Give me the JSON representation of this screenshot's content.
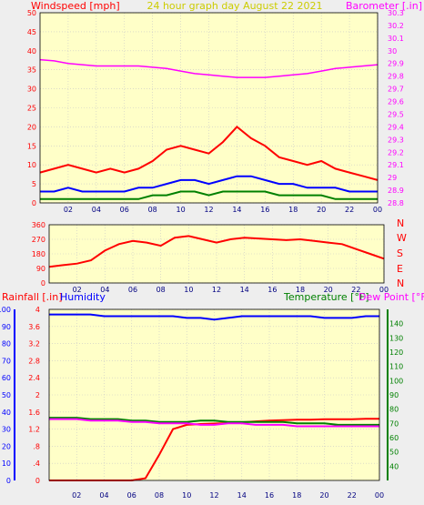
{
  "header": {
    "left_label": "Windspeed [mph]",
    "center_label": "24 hour graph day   August 22 2021",
    "right_label": "Barometer [.in]"
  },
  "compass": [
    "N",
    "W",
    "S",
    "E",
    "N"
  ],
  "bottom_labels": {
    "rainfall": "Rainfall [.in]",
    "humidity": "Humidity",
    "temperature": "Temperature [°F]",
    "dewpoint": "Dew Point [°F]"
  },
  "colors": {
    "plot_bg": "#ffffc8",
    "frame_bg": "#eeeeee",
    "grid": "#c8c8c8",
    "windspeed_gust": "#ff0000",
    "windspeed_avg": "#0000ff",
    "windspeed_low": "#008000",
    "barometer": "#ff00ff",
    "winddir": "#ff0000",
    "rainfall": "#ff0000",
    "humidity": "#0000ff",
    "temperature": "#008000",
    "dewpoint": "#ff00ff"
  },
  "x_axis": {
    "ticks": [
      "02",
      "04",
      "06",
      "08",
      "10",
      "12",
      "14",
      "16",
      "18",
      "20",
      "22",
      "00"
    ]
  },
  "chart_data": [
    {
      "type": "line",
      "title": "24 hour graph day   August 22 2021",
      "ylabel": "Windspeed [mph]",
      "y2label": "Barometer [.in]",
      "ylim": [
        0,
        50
      ],
      "y2lim": [
        28.8,
        30.3
      ],
      "yticks": [
        "0",
        "5",
        "10",
        "15",
        "20",
        "25",
        "30",
        "35",
        "40",
        "45",
        "50"
      ],
      "y2ticks": [
        "28.8",
        "28.9",
        "29",
        "29.1",
        "29.2",
        "29.3",
        "29.4",
        "29.5",
        "29.6",
        "29.7",
        "29.8",
        "29.9",
        "30",
        "30.1",
        "30.2",
        "30.3"
      ],
      "x_hours": [
        0,
        1,
        2,
        3,
        4,
        5,
        6,
        7,
        8,
        9,
        10,
        11,
        12,
        13,
        14,
        15,
        16,
        17,
        18,
        19,
        20,
        21,
        22,
        23,
        24
      ],
      "series": [
        {
          "name": "Gust",
          "axis": "left",
          "values": [
            8,
            9,
            10,
            9,
            8,
            9,
            8,
            9,
            11,
            14,
            15,
            14,
            13,
            16,
            20,
            17,
            15,
            12,
            11,
            10,
            11,
            9,
            8,
            7,
            6
          ]
        },
        {
          "name": "Average",
          "axis": "left",
          "values": [
            3,
            3,
            4,
            3,
            3,
            3,
            3,
            4,
            4,
            5,
            6,
            6,
            5,
            6,
            7,
            7,
            6,
            5,
            5,
            4,
            4,
            4,
            3,
            3,
            3
          ]
        },
        {
          "name": "Low",
          "axis": "left",
          "values": [
            1,
            1,
            1,
            1,
            1,
            1,
            1,
            1,
            2,
            2,
            3,
            3,
            2,
            3,
            3,
            3,
            3,
            2,
            2,
            2,
            2,
            1,
            1,
            1,
            1
          ]
        },
        {
          "name": "Barometer",
          "axis": "right",
          "values": [
            29.93,
            29.92,
            29.9,
            29.89,
            29.88,
            29.88,
            29.88,
            29.88,
            29.87,
            29.86,
            29.84,
            29.82,
            29.81,
            29.8,
            29.79,
            29.79,
            29.79,
            29.8,
            29.81,
            29.82,
            29.84,
            29.86,
            29.87,
            29.88,
            29.89
          ]
        }
      ]
    },
    {
      "type": "line",
      "ylabel": "",
      "ylim": [
        0,
        360
      ],
      "yticks": [
        "0",
        "90",
        "180",
        "270",
        "360"
      ],
      "x_hours": [
        0,
        1,
        2,
        3,
        4,
        5,
        6,
        7,
        8,
        9,
        10,
        11,
        12,
        13,
        14,
        15,
        16,
        17,
        18,
        19,
        20,
        21,
        22,
        23,
        24
      ],
      "series": [
        {
          "name": "Wind Direction",
          "values": [
            100,
            110,
            120,
            140,
            200,
            240,
            260,
            250,
            230,
            280,
            290,
            270,
            250,
            270,
            280,
            275,
            270,
            265,
            270,
            260,
            250,
            240,
            210,
            180,
            150
          ]
        }
      ]
    },
    {
      "type": "line",
      "ylabel": "Rainfall [.in]",
      "y2label": "Temperature [°F]",
      "ylim": [
        0,
        4
      ],
      "yticks_left1": [
        "0",
        ".4",
        ".8",
        "1.2",
        "1.6",
        "2",
        "2.4",
        "2.8",
        "3.2",
        "3.6",
        "4"
      ],
      "yticks_left2": [
        "0",
        "10",
        "20",
        "30",
        "40",
        "50",
        "60",
        "70",
        "80",
        "90",
        "100"
      ],
      "y2lim": [
        30,
        150
      ],
      "y2ticks": [
        "40",
        "50",
        "60",
        "70",
        "80",
        "90",
        "100",
        "110",
        "120",
        "130",
        "140"
      ],
      "x_hours": [
        0,
        1,
        2,
        3,
        4,
        5,
        6,
        7,
        8,
        9,
        10,
        11,
        12,
        13,
        14,
        15,
        16,
        17,
        18,
        19,
        20,
        21,
        22,
        23,
        24
      ],
      "series": [
        {
          "name": "Rainfall",
          "axis": "rain",
          "values": [
            0,
            0,
            0,
            0,
            0,
            0,
            0,
            0.05,
            0.6,
            1.2,
            1.3,
            1.32,
            1.33,
            1.34,
            1.36,
            1.38,
            1.4,
            1.41,
            1.42,
            1.42,
            1.43,
            1.43,
            1.43,
            1.44,
            1.44
          ]
        },
        {
          "name": "Humidity",
          "axis": "humidity",
          "values": [
            97,
            97,
            97,
            97,
            96,
            96,
            96,
            96,
            96,
            96,
            95,
            95,
            94,
            95,
            96,
            96,
            96,
            96,
            96,
            96,
            95,
            95,
            95,
            96,
            96
          ]
        },
        {
          "name": "Temperature",
          "axis": "temp",
          "values": [
            74,
            74,
            74,
            73,
            73,
            73,
            72,
            72,
            71,
            71,
            71,
            72,
            72,
            71,
            71,
            71,
            71,
            71,
            70,
            70,
            70,
            69,
            69,
            69,
            69
          ]
        },
        {
          "name": "Dew Point",
          "axis": "temp",
          "values": [
            73,
            73,
            73,
            72,
            72,
            72,
            71,
            71,
            70,
            70,
            70,
            69,
            69,
            70,
            70,
            69,
            69,
            69,
            68,
            68,
            68,
            68,
            68,
            68,
            68
          ]
        }
      ]
    }
  ]
}
